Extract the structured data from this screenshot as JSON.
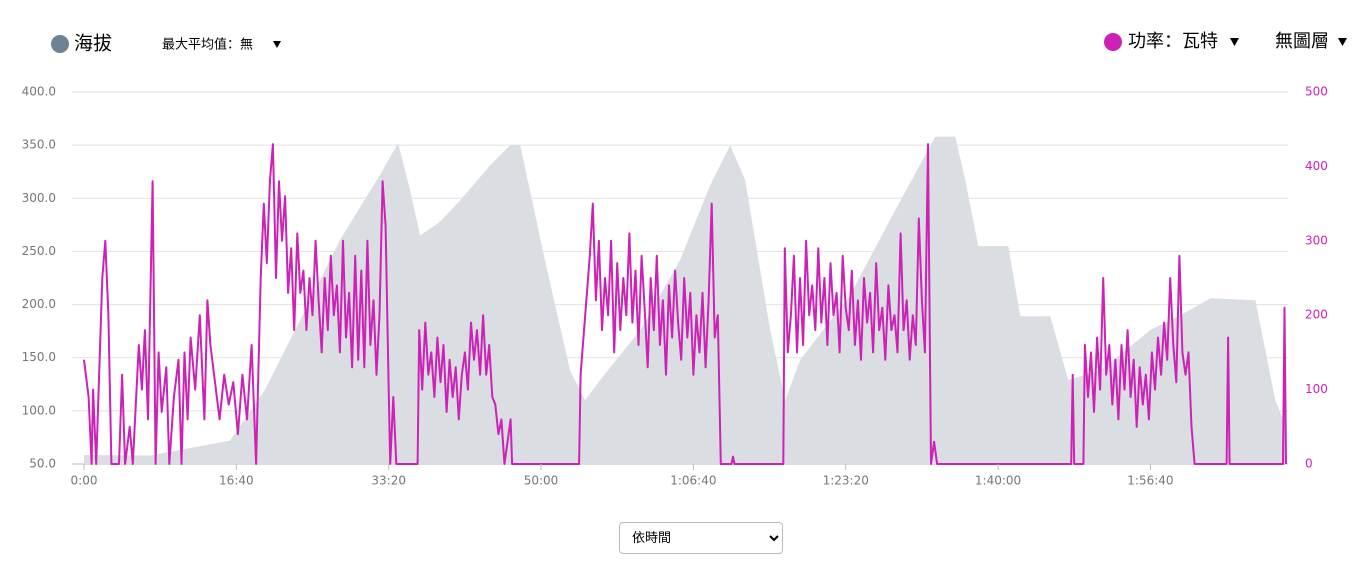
{
  "chart_data": {
    "type": "line",
    "controls": {
      "max_avg": "最大平均值：無",
      "layer": "無圖層",
      "x_mode": "依時間"
    },
    "xlim": [
      0,
      7890
    ],
    "xticks": [
      {
        "value": 0,
        "label": "0:00"
      },
      {
        "value": 1000,
        "label": "16:40"
      },
      {
        "value": 2000,
        "label": "33:20"
      },
      {
        "value": 3000,
        "label": "50:00"
      },
      {
        "value": 4000,
        "label": "1:06:40"
      },
      {
        "value": 5000,
        "label": "1:23:20"
      },
      {
        "value": 6000,
        "label": "1:40:00"
      },
      {
        "value": 7000,
        "label": "1:56:40"
      }
    ],
    "ylim": [
      50,
      400
    ],
    "yticks": [
      {
        "value": 50,
        "label": "50.0"
      },
      {
        "value": 100,
        "label": "100.0"
      },
      {
        "value": 150,
        "label": "150.0"
      },
      {
        "value": 200,
        "label": "200.0"
      },
      {
        "value": 250,
        "label": "250.0"
      },
      {
        "value": 300,
        "label": "300.0"
      },
      {
        "value": 350,
        "label": "350.0"
      },
      {
        "value": 400,
        "label": "400.0"
      }
    ],
    "y2lim": [
      0,
      500
    ],
    "y2ticks": [
      0,
      100,
      200,
      300,
      400,
      500
    ],
    "grid": true,
    "series": [
      {
        "name": "海拔",
        "type": "area",
        "color": "#dadee2",
        "legend_color": "#6f8291",
        "x": [
          0,
          433,
          958,
          1188,
          1418,
          1681,
          1943,
          2062,
          2140,
          2206,
          2337,
          2469,
          2666,
          2797,
          2863,
          3027,
          3191,
          3290,
          3388,
          3651,
          3913,
          4110,
          4242,
          4340,
          4504,
          4603,
          4701,
          5030,
          5292,
          5588,
          5719,
          5785,
          5870,
          6067,
          6146,
          6343,
          6461,
          6671,
          6999,
          7262,
          7393,
          7689,
          7820,
          7886
        ],
        "values": [
          58.5,
          58,
          72,
          120,
          185,
          261,
          322,
          352,
          308,
          265,
          278,
          298,
          331,
          350,
          350,
          241,
          138,
          110,
          129,
          176,
          242,
          312,
          350,
          317,
          176,
          110,
          148,
          209,
          280,
          358,
          358,
          317,
          255,
          255,
          189,
          189,
          129,
          138,
          176,
          195,
          206,
          204,
          110,
          87
        ]
      },
      {
        "name": "功率：瓦特",
        "type": "line",
        "axis": "y2",
        "color": "#cc22b5",
        "x": [
          0,
          30,
          50,
          60,
          80,
          120,
          140,
          160,
          180,
          230,
          250,
          270,
          300,
          320,
          360,
          380,
          400,
          420,
          450,
          470,
          490,
          510,
          540,
          560,
          590,
          620,
          640,
          660,
          680,
          700,
          730,
          760,
          790,
          810,
          830,
          860,
          890,
          920,
          950,
          980,
          1010,
          1040,
          1070,
          1100,
          1130,
          1160,
          1180,
          1200,
          1220,
          1240,
          1260,
          1280,
          1300,
          1320,
          1340,
          1360,
          1380,
          1400,
          1420,
          1440,
          1460,
          1480,
          1500,
          1520,
          1540,
          1560,
          1580,
          1600,
          1620,
          1640,
          1660,
          1680,
          1700,
          1720,
          1740,
          1760,
          1780,
          1800,
          1820,
          1840,
          1860,
          1880,
          1900,
          1920,
          1940,
          1960,
          1980,
          2000,
          2010,
          2030,
          2050,
          2190,
          2200,
          2220,
          2240,
          2260,
          2280,
          2300,
          2320,
          2340,
          2360,
          2380,
          2400,
          2420,
          2440,
          2460,
          2480,
          2500,
          2520,
          2540,
          2560,
          2580,
          2600,
          2620,
          2640,
          2660,
          2680,
          2700,
          2720,
          2740,
          2760,
          2800,
          2810,
          3250,
          3260,
          3290,
          3320,
          3340,
          3360,
          3380,
          3400,
          3420,
          3440,
          3460,
          3480,
          3500,
          3520,
          3540,
          3560,
          3580,
          3600,
          3620,
          3640,
          3660,
          3680,
          3700,
          3720,
          3740,
          3760,
          3780,
          3800,
          3820,
          3840,
          3860,
          3880,
          3900,
          3920,
          3940,
          3960,
          3980,
          4000,
          4020,
          4040,
          4060,
          4080,
          4100,
          4120,
          4140,
          4160,
          4180,
          4250,
          4260,
          4270,
          4590,
          4600,
          4620,
          4640,
          4660,
          4680,
          4700,
          4720,
          4740,
          4760,
          4780,
          4800,
          4820,
          4840,
          4860,
          4880,
          4900,
          4920,
          4940,
          4960,
          4980,
          5000,
          5020,
          5040,
          5060,
          5080,
          5100,
          5120,
          5140,
          5160,
          5180,
          5200,
          5220,
          5240,
          5260,
          5280,
          5300,
          5320,
          5340,
          5360,
          5380,
          5400,
          5420,
          5440,
          5460,
          5480,
          5500,
          5520,
          5540,
          5560,
          5580,
          5600,
          6480,
          6490,
          6500,
          6560,
          6570,
          6590,
          6610,
          6630,
          6650,
          6670,
          6690,
          6710,
          6730,
          6750,
          6770,
          6790,
          6810,
          6830,
          6850,
          6870,
          6890,
          6910,
          6930,
          6950,
          6970,
          6990,
          7010,
          7030,
          7050,
          7070,
          7090,
          7110,
          7130,
          7150,
          7170,
          7190,
          7210,
          7230,
          7250,
          7270,
          7290,
          7500,
          7510,
          7520,
          7870,
          7880,
          7890
        ],
        "values": [
          140,
          90,
          0,
          100,
          0,
          250,
          300,
          200,
          0,
          0,
          120,
          0,
          50,
          0,
          160,
          100,
          180,
          60,
          380,
          0,
          150,
          70,
          130,
          0,
          90,
          140,
          0,
          150,
          60,
          170,
          100,
          200,
          60,
          220,
          160,
          110,
          60,
          120,
          80,
          110,
          40,
          120,
          60,
          160,
          0,
          250,
          350,
          270,
          380,
          430,
          250,
          380,
          300,
          360,
          230,
          290,
          180,
          310,
          230,
          260,
          180,
          250,
          200,
          300,
          220,
          150,
          250,
          180,
          280,
          200,
          240,
          150,
          300,
          170,
          230,
          130,
          280,
          140,
          260,
          130,
          300,
          160,
          220,
          120,
          200,
          380,
          320,
          100,
          0,
          90,
          0,
          0,
          180,
          100,
          190,
          120,
          150,
          90,
          170,
          110,
          160,
          70,
          140,
          90,
          130,
          60,
          120,
          150,
          100,
          190,
          140,
          180,
          120,
          200,
          120,
          160,
          90,
          80,
          40,
          60,
          0,
          60,
          0,
          0,
          120,
          200,
          280,
          350,
          220,
          300,
          180,
          250,
          200,
          300,
          150,
          270,
          180,
          250,
          200,
          310,
          190,
          260,
          160,
          280,
          210,
          130,
          250,
          180,
          280,
          160,
          220,
          120,
          240,
          170,
          260,
          190,
          140,
          250,
          170,
          230,
          120,
          200,
          150,
          230,
          130,
          220,
          350,
          170,
          200,
          0,
          0,
          10,
          0,
          0,
          290,
          150,
          200,
          280,
          150,
          250,
          160,
          300,
          200,
          240,
          180,
          290,
          190,
          250,
          160,
          270,
          200,
          230,
          150,
          280,
          210,
          180,
          260,
          160,
          220,
          140,
          250,
          190,
          230,
          150,
          270,
          180,
          210,
          140,
          240,
          180,
          200,
          150,
          310,
          180,
          220,
          140,
          200,
          160,
          330,
          220,
          150,
          430,
          0,
          30,
          0,
          0,
          120,
          0,
          0,
          160,
          90,
          150,
          70,
          170,
          100,
          250,
          120,
          160,
          80,
          140,
          60,
          160,
          100,
          180,
          90,
          140,
          50,
          130,
          80,
          120,
          60,
          150,
          100,
          170,
          120,
          190,
          140,
          250,
          160,
          110,
          280,
          150,
          120,
          150,
          50,
          0,
          0,
          170,
          0,
          0,
          210,
          0
        ]
      }
    ]
  }
}
